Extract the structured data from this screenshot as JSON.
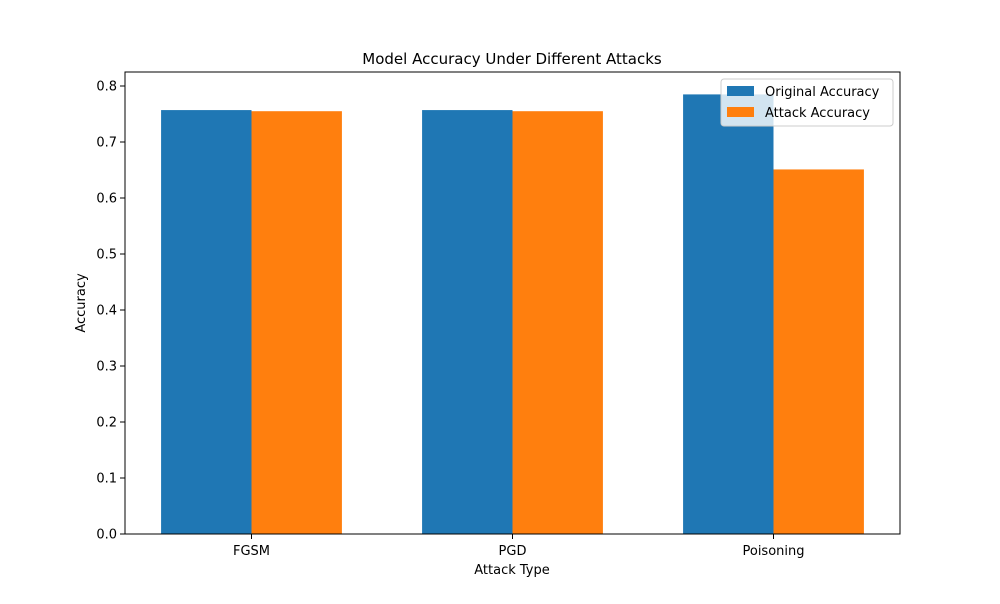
{
  "chart_data": {
    "type": "bar",
    "title": "Model Accuracy Under Different Attacks",
    "xlabel": "Attack Type",
    "ylabel": "Accuracy",
    "categories": [
      "FGSM",
      "PGD",
      "Poisoning"
    ],
    "series": [
      {
        "name": "Original Accuracy",
        "values": [
          0.757,
          0.757,
          0.785
        ],
        "color": "#1f77b4"
      },
      {
        "name": "Attack Accuracy",
        "values": [
          0.755,
          0.755,
          0.651
        ],
        "color": "#ff7f0e"
      }
    ],
    "ylim": [
      0,
      0.825
    ],
    "yticks": [
      "0.0",
      "0.1",
      "0.2",
      "0.3",
      "0.4",
      "0.5",
      "0.6",
      "0.7",
      "0.8"
    ],
    "grid": false,
    "legend_position": "top-right"
  }
}
